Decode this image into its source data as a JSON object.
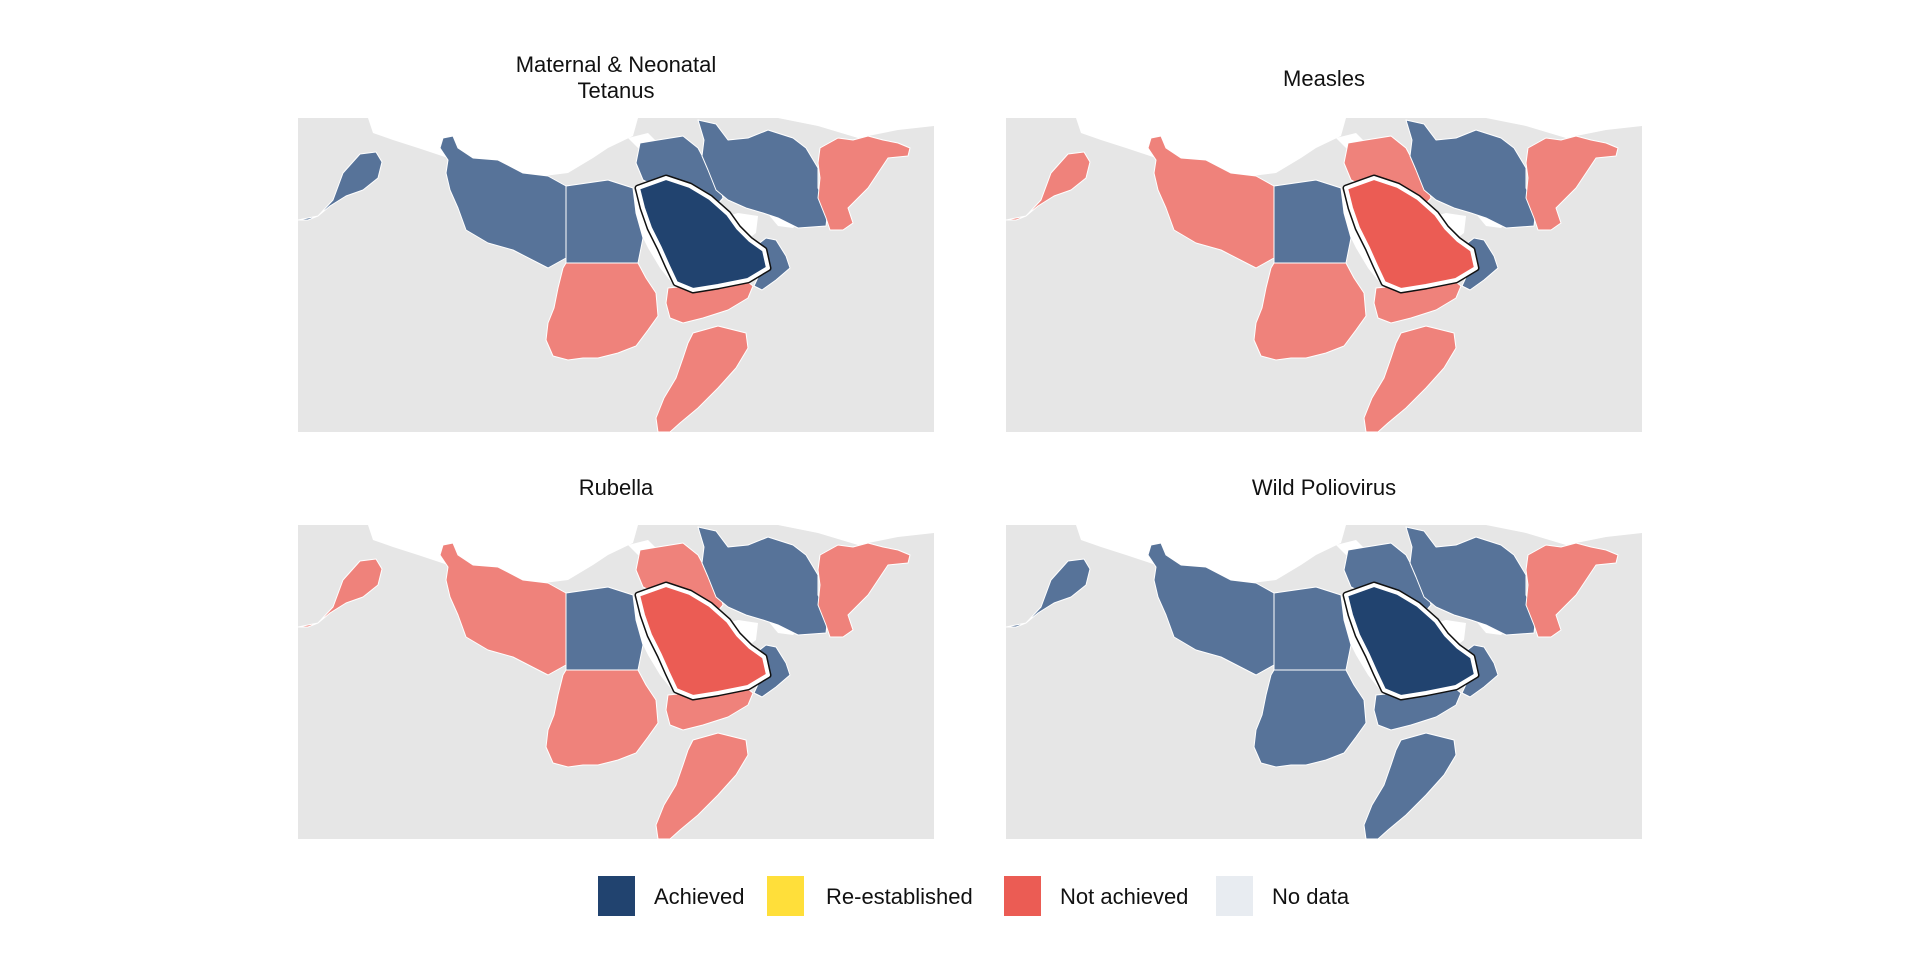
{
  "colors": {
    "achieved": "#21436f",
    "achieved_light": "#577399",
    "re_established": "#ffdf3a",
    "not_achieved": "#eb5c54",
    "not_achieved_light": "#ef827b",
    "no_data": "#e8ecf1",
    "land": "#e6e6e6",
    "sea": "#ffffff"
  },
  "panels": [
    {
      "title": "Maternal & Neonatal\nTetanus",
      "regions": {
        "morocco": "achieved",
        "north_africa": "achieved",
        "egypt": "achieved",
        "sudan": "not_achieved",
        "horn": "not_achieved",
        "levant": "achieved",
        "iran": "achieved",
        "afpak": "not_achieved",
        "yemen": "not_achieved",
        "oman": "achieved",
        "saudi": "achieved"
      }
    },
    {
      "title": "Measles",
      "regions": {
        "morocco": "not_achieved",
        "north_africa": "not_achieved",
        "egypt": "achieved",
        "sudan": "not_achieved",
        "horn": "not_achieved",
        "levant": "not_achieved",
        "iran": "achieved",
        "afpak": "not_achieved",
        "yemen": "not_achieved",
        "oman": "achieved",
        "saudi": "not_achieved"
      }
    },
    {
      "title": "Rubella",
      "regions": {
        "morocco": "not_achieved",
        "north_africa": "not_achieved",
        "egypt": "achieved",
        "sudan": "not_achieved",
        "horn": "not_achieved",
        "levant": "not_achieved",
        "iran": "achieved",
        "afpak": "not_achieved",
        "yemen": "not_achieved",
        "oman": "achieved",
        "saudi": "not_achieved"
      }
    },
    {
      "title": "Wild Poliovirus",
      "regions": {
        "morocco": "achieved",
        "north_africa": "achieved",
        "egypt": "achieved",
        "sudan": "achieved",
        "horn": "achieved",
        "levant": "achieved",
        "iran": "achieved",
        "afpak": "not_achieved",
        "yemen": "achieved",
        "oman": "achieved",
        "saudi": "achieved"
      }
    }
  ],
  "legend": [
    {
      "label": "Achieved",
      "status": "achieved"
    },
    {
      "label": "Re-established",
      "status": "re_established"
    },
    {
      "label": "Not achieved",
      "status": "not_achieved"
    },
    {
      "label": "No data",
      "status": "no_data"
    }
  ]
}
